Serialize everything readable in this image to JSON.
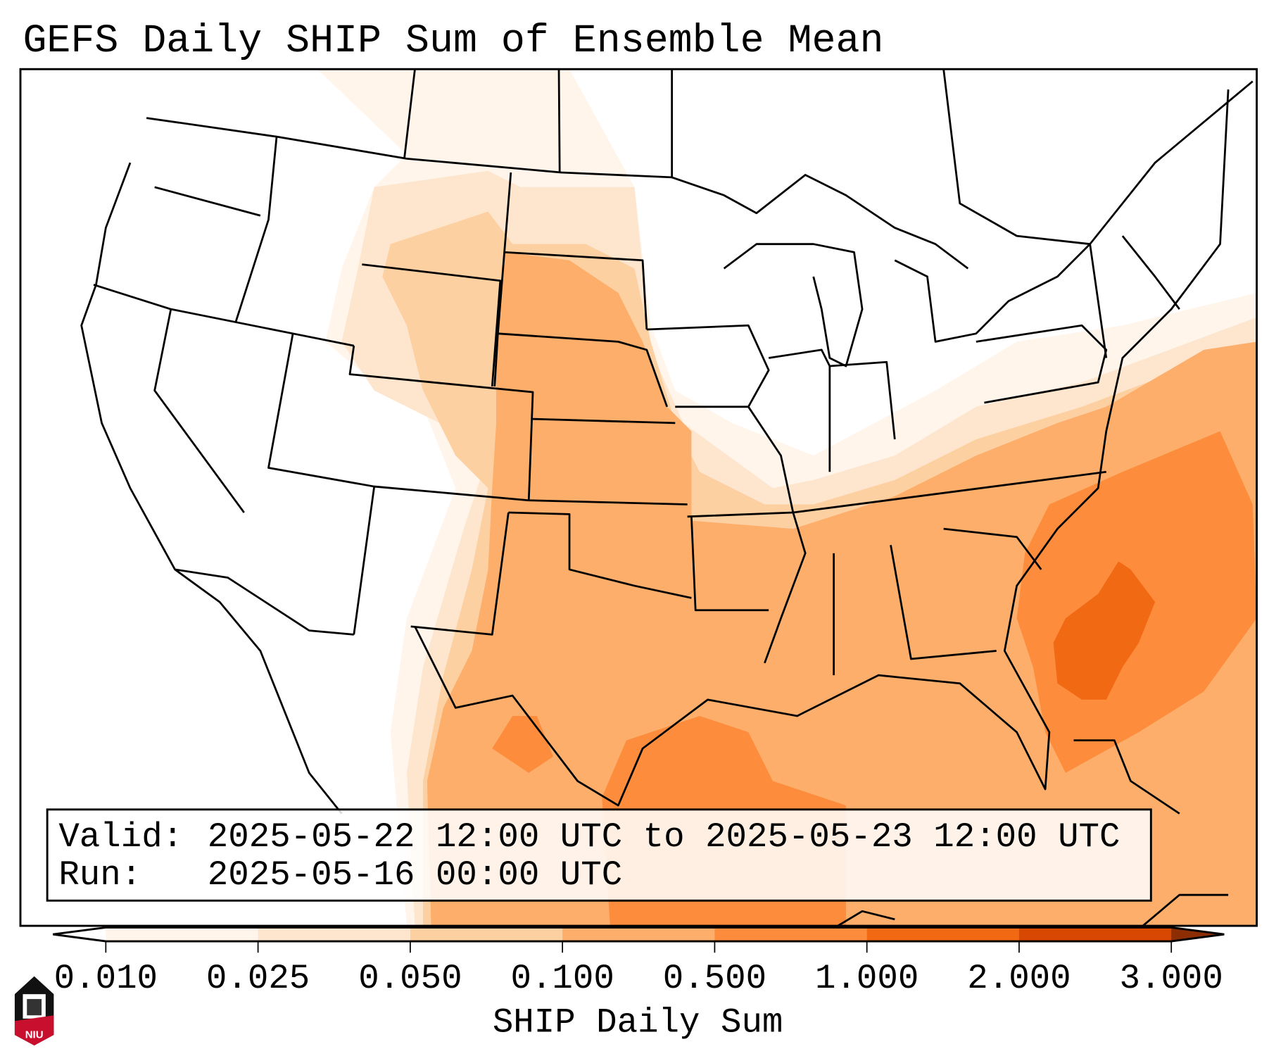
{
  "title": "GEFS Daily SHIP Sum of Ensemble Mean",
  "info_box": {
    "valid_label": "Valid:",
    "valid_value": "2025-05-22 12:00 UTC to 2025-05-23 12:00 UTC",
    "run_label": "Run:",
    "run_value": "2025-05-16 00:00 UTC"
  },
  "colorbar": {
    "label": "SHIP Daily Sum",
    "ticks": [
      "0.010",
      "0.025",
      "0.050",
      "0.100",
      "0.500",
      "1.000",
      "2.000",
      "3.000"
    ],
    "colors": [
      "#fff5eb",
      "#fee6ce",
      "#fdd0a2",
      "#fdae6b",
      "#fd8d3c",
      "#f16913",
      "#d94801"
    ],
    "extend_min_color": "#ffffff",
    "extend_max_color": "#8c2d04"
  },
  "logo": {
    "text": "NIU"
  }
}
